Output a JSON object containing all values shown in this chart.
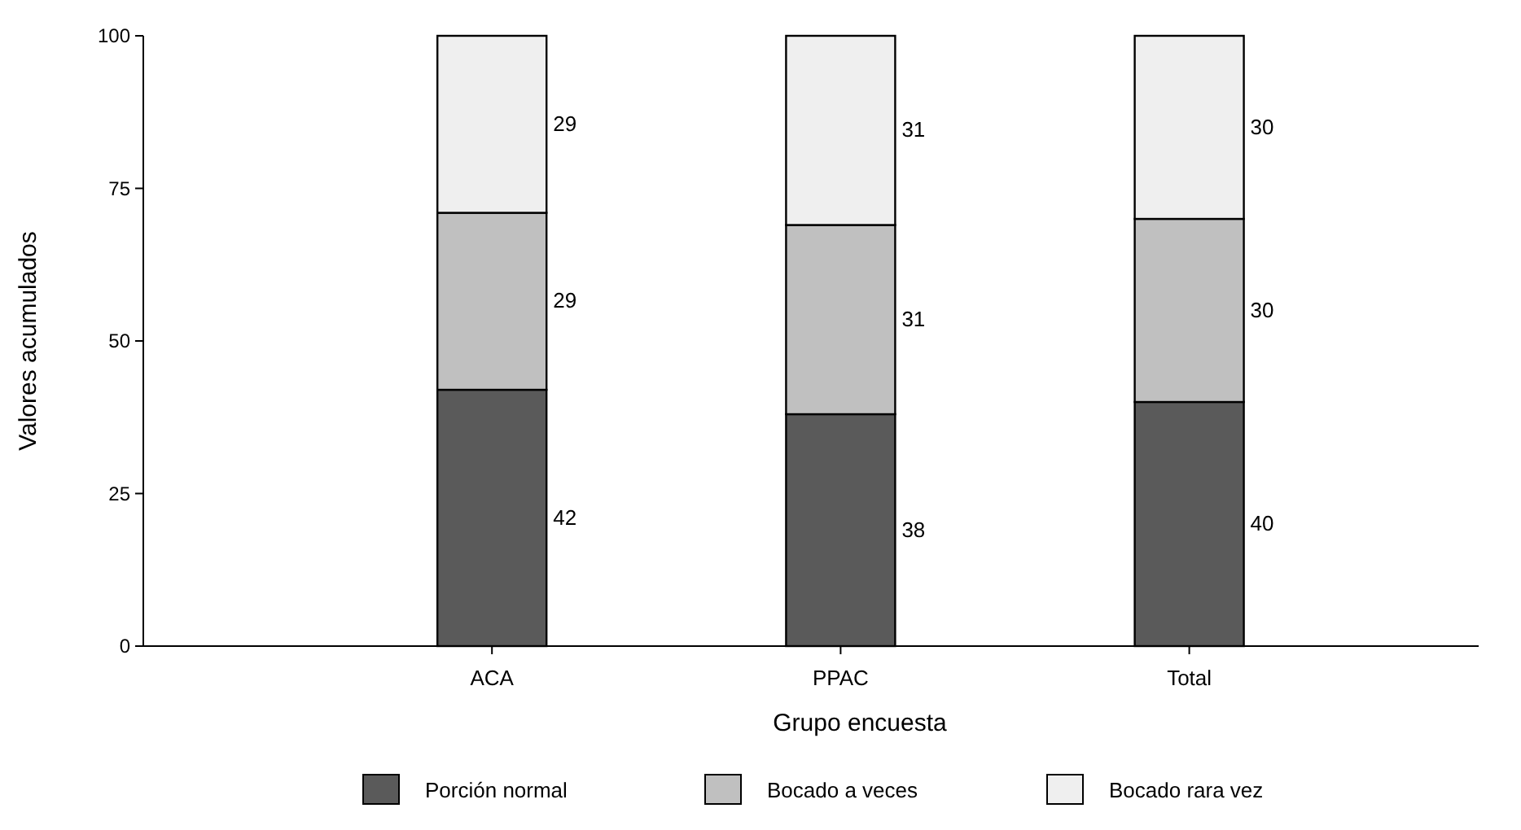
{
  "chart_data": {
    "type": "bar",
    "stacked": true,
    "xlabel": "Grupo encuesta",
    "ylabel": "Valores acumulados",
    "categories": [
      "ACA",
      "PPAC",
      "Total"
    ],
    "series": [
      {
        "name": "Porción normal",
        "color": "#5a5a5a",
        "values": [
          42,
          38,
          40
        ]
      },
      {
        "name": "Bocado a veces",
        "color": "#c0c0c0",
        "values": [
          29,
          31,
          30
        ]
      },
      {
        "name": "Bocado rara vez",
        "color": "#efefef",
        "values": [
          29,
          31,
          30
        ]
      }
    ],
    "ylim": [
      0,
      100
    ],
    "yticks": [
      0,
      25,
      50,
      75,
      100
    ],
    "data_labels": true,
    "legend": "bottom",
    "grid": false
  }
}
